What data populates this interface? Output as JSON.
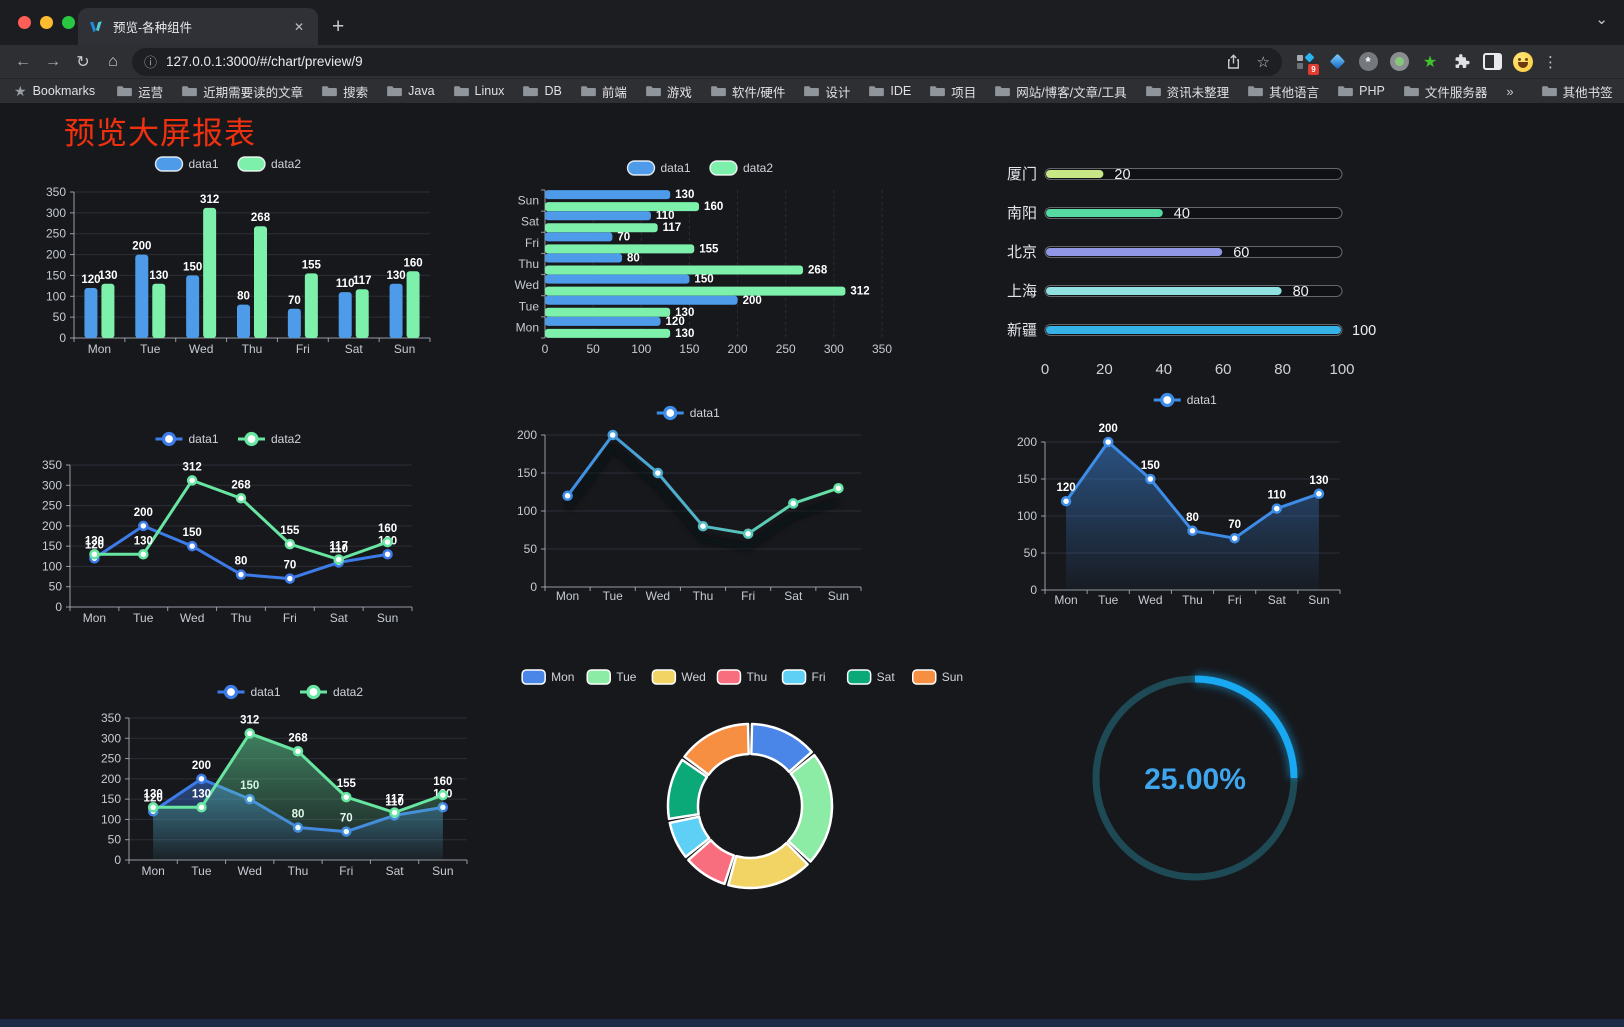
{
  "browser": {
    "tab": {
      "title": "预览-各种组件",
      "close_glyph": "✕",
      "new_tab_glyph": "+"
    },
    "url_host": "127.0.0.1:3000",
    "url_path": "/#/chart/preview/9",
    "bookmarks_label": "Bookmarks",
    "bookmarks": [
      "运营",
      "近期需要读的文章",
      "搜索",
      "Java",
      "Linux",
      "DB",
      "前端",
      "游戏",
      "软件/硬件",
      "设计",
      "IDE",
      "项目",
      "网站/博客/文章/工具",
      "资讯未整理",
      "其他语言",
      "PHP",
      "文件服务器"
    ],
    "bookmarks_overflow": "»",
    "other_bookmarks": "其他书签",
    "extension_badge": "9"
  },
  "page": {
    "title": "预览大屏报表",
    "title_color": "#f0310f",
    "background": "#17181c"
  },
  "chart_data": [
    {
      "id": "bar-grouped",
      "type": "bar",
      "categories": [
        "Mon",
        "Tue",
        "Wed",
        "Thu",
        "Fri",
        "Sat",
        "Sun"
      ],
      "series": [
        {
          "name": "data1",
          "color": "#4d9be9",
          "values": [
            120,
            200,
            150,
            80,
            70,
            110,
            130
          ]
        },
        {
          "name": "data2",
          "color": "#7df0ab",
          "values": [
            130,
            130,
            312,
            268,
            155,
            117,
            160
          ]
        }
      ],
      "ylim": [
        0,
        350
      ],
      "yticks": [
        0,
        50,
        100,
        150,
        200,
        250,
        300,
        350
      ],
      "legend_position": "top",
      "grid": true,
      "labels": true
    },
    {
      "id": "bar-horizontal",
      "type": "bar-horizontal",
      "categories": [
        "Mon",
        "Tue",
        "Wed",
        "Thu",
        "Fri",
        "Sat",
        "Sun"
      ],
      "series": [
        {
          "name": "data1",
          "color": "#4d9be9",
          "values": [
            120,
            200,
            150,
            80,
            70,
            110,
            130
          ]
        },
        {
          "name": "data2",
          "color": "#7df0ab",
          "values": [
            130,
            130,
            312,
            268,
            155,
            117,
            160
          ]
        }
      ],
      "xlim": [
        0,
        350
      ],
      "xticks": [
        0,
        50,
        100,
        150,
        200,
        250,
        300,
        350
      ],
      "legend_position": "top",
      "grid": true,
      "labels": true
    },
    {
      "id": "progress-bars",
      "type": "progress",
      "max": 100,
      "xticks": [
        0,
        20,
        40,
        60,
        80,
        100
      ],
      "items": [
        {
          "label": "厦门",
          "value": 20,
          "color": "#c9e687"
        },
        {
          "label": "南阳",
          "value": 40,
          "color": "#55dba2"
        },
        {
          "label": "北京",
          "value": 60,
          "color": "#9197e4"
        },
        {
          "label": "上海",
          "value": 80,
          "color": "#90e2e0"
        },
        {
          "label": "新疆",
          "value": 100,
          "color": "#37b2e7"
        }
      ]
    },
    {
      "id": "line-two-series",
      "type": "line",
      "categories": [
        "Mon",
        "Tue",
        "Wed",
        "Thu",
        "Fri",
        "Sat",
        "Sun"
      ],
      "series": [
        {
          "name": "data1",
          "color": "#3d7be8",
          "values": [
            120,
            200,
            150,
            80,
            70,
            110,
            130
          ]
        },
        {
          "name": "data2",
          "color": "#67e5a1",
          "values": [
            130,
            130,
            312,
            268,
            155,
            117,
            160
          ]
        }
      ],
      "ylim": [
        0,
        350
      ],
      "yticks": [
        0,
        50,
        100,
        150,
        200,
        250,
        300,
        350
      ],
      "legend_position": "top",
      "grid": true,
      "labels": true
    },
    {
      "id": "line-gradient",
      "type": "line",
      "categories": [
        "Mon",
        "Tue",
        "Wed",
        "Thu",
        "Fri",
        "Sat",
        "Sun"
      ],
      "series": [
        {
          "name": "data1",
          "color_start": "#3d8ce8",
          "color_end": "#67e5a1",
          "values": [
            120,
            200,
            150,
            80,
            70,
            110,
            130
          ]
        }
      ],
      "ylim": [
        0,
        200
      ],
      "yticks": [
        0,
        50,
        100,
        150,
        200
      ],
      "legend_position": "top",
      "grid": true,
      "labels": false,
      "shadow": true
    },
    {
      "id": "area-single",
      "type": "area",
      "categories": [
        "Mon",
        "Tue",
        "Wed",
        "Thu",
        "Fri",
        "Sat",
        "Sun"
      ],
      "series": [
        {
          "name": "data1",
          "color": "#3d8ce8",
          "values": [
            120,
            200,
            150,
            80,
            70,
            110,
            130
          ]
        }
      ],
      "ylim": [
        0,
        200
      ],
      "yticks": [
        0,
        50,
        100,
        150,
        200
      ],
      "legend_position": "top",
      "grid": true,
      "labels": true
    },
    {
      "id": "area-two-series",
      "type": "area",
      "categories": [
        "Mon",
        "Tue",
        "Wed",
        "Thu",
        "Fri",
        "Sat",
        "Sun"
      ],
      "series": [
        {
          "name": "data1",
          "color": "#3d7be8",
          "values": [
            120,
            200,
            150,
            80,
            70,
            110,
            130
          ]
        },
        {
          "name": "data2",
          "color": "#67e5a1",
          "values": [
            130,
            130,
            312,
            268,
            155,
            117,
            160
          ]
        }
      ],
      "ylim": [
        0,
        350
      ],
      "yticks": [
        0,
        50,
        100,
        150,
        200,
        250,
        300,
        350
      ],
      "legend_position": "top",
      "grid": true,
      "labels": true
    },
    {
      "id": "donut",
      "type": "pie",
      "items": [
        {
          "label": "Mon",
          "value": 120,
          "color": "#4a86e8"
        },
        {
          "label": "Tue",
          "value": 200,
          "color": "#8ceca6"
        },
        {
          "label": "Wed",
          "value": 150,
          "color": "#f2d464"
        },
        {
          "label": "Thu",
          "value": 80,
          "color": "#f96e7e"
        },
        {
          "label": "Fri",
          "value": 70,
          "color": "#5fd0f5"
        },
        {
          "label": "Sat",
          "value": 110,
          "color": "#0ba878"
        },
        {
          "label": "Sun",
          "value": 130,
          "color": "#f78f42"
        }
      ],
      "legend_position": "top"
    },
    {
      "id": "gauge",
      "type": "gauge",
      "value": 25,
      "max": 100,
      "label": "25.00%",
      "arc_color": "#18a9f2",
      "track_color": "#1d4a55",
      "text_color": "#3fa6ee"
    }
  ]
}
